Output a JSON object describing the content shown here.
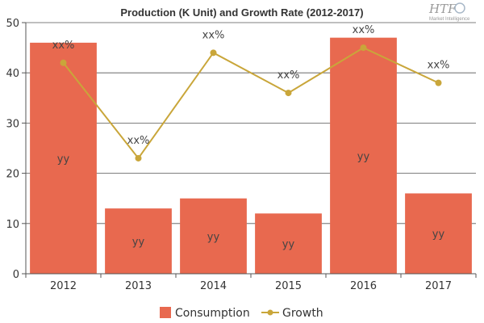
{
  "chart_data": {
    "type": "bar",
    "title": "Production (K Unit) and Growth Rate (2012-2017)",
    "categories": [
      "2012",
      "2013",
      "2014",
      "2015",
      "2016",
      "2017"
    ],
    "ylim": [
      0,
      50
    ],
    "yticks": [
      0,
      10,
      20,
      30,
      40,
      50
    ],
    "grid": true,
    "legend_position": "bottom",
    "series": [
      {
        "name": "Consumption",
        "type": "bar",
        "color": "#e8694f",
        "values": [
          46,
          13,
          15,
          12,
          47,
          16
        ],
        "data_labels": [
          "yy",
          "yy",
          "yy",
          "yy",
          "yy",
          "yy"
        ]
      },
      {
        "name": "Growth",
        "type": "line",
        "color": "#c9a63a",
        "values": [
          42,
          23,
          44,
          36,
          45,
          38
        ],
        "data_labels": [
          "xx%",
          "xx%",
          "xx%",
          "xx%",
          "xx%",
          "xx%"
        ]
      }
    ]
  },
  "logo": {
    "text": "HTF",
    "subtext": "Market Intelligence"
  }
}
